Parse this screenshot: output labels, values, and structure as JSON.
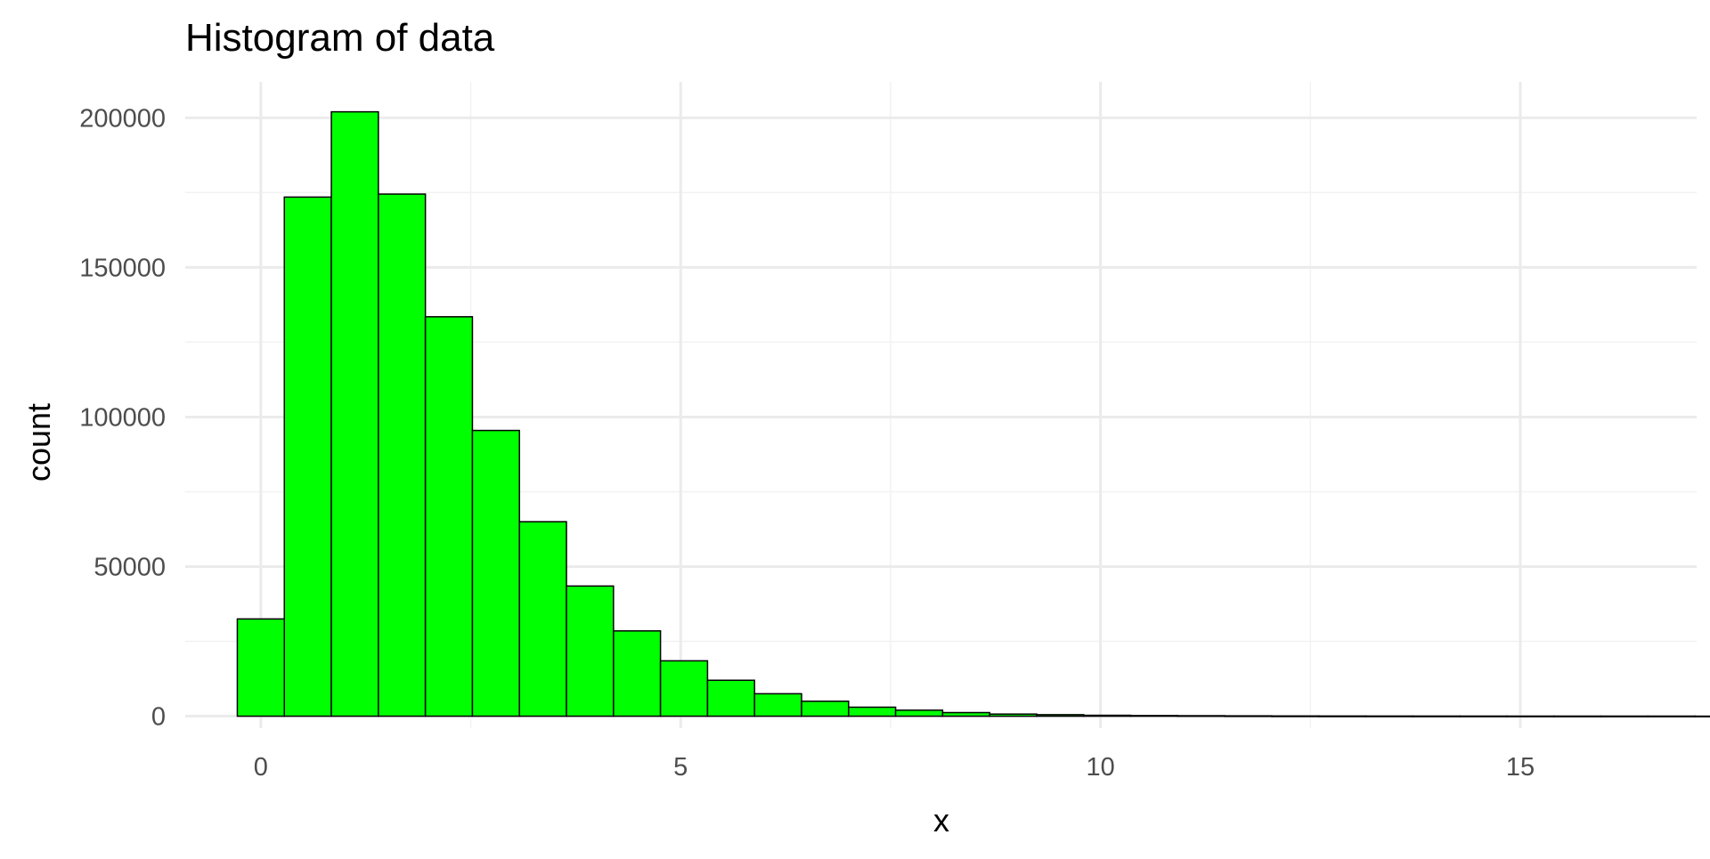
{
  "chart_data": {
    "type": "bar",
    "title": "Histogram of data",
    "xlabel": "x",
    "ylabel": "count",
    "x_ticks": [
      0,
      5,
      10,
      15
    ],
    "y_ticks": [
      0,
      50000,
      100000,
      150000,
      200000
    ],
    "xlim": [
      -0.9,
      17.1
    ],
    "ylim": [
      -4000,
      212000
    ],
    "bin_width": 0.56,
    "bins_start": -0.28,
    "values": [
      32500,
      173500,
      202000,
      174500,
      133500,
      95500,
      65000,
      43500,
      28500,
      18500,
      12000,
      7500,
      5000,
      3000,
      2000,
      1200,
      700,
      500,
      300,
      200,
      150,
      100,
      60,
      40,
      30,
      20,
      15,
      10,
      8,
      5,
      5,
      3
    ],
    "grid": true,
    "legend": "none",
    "colors": {
      "fill": "#00ff00",
      "stroke": "#000000",
      "grid_major": "#ebebeb",
      "grid_minor": "#f2f2f2",
      "tick_label": "#4d4d4d",
      "title": "#000000"
    }
  }
}
